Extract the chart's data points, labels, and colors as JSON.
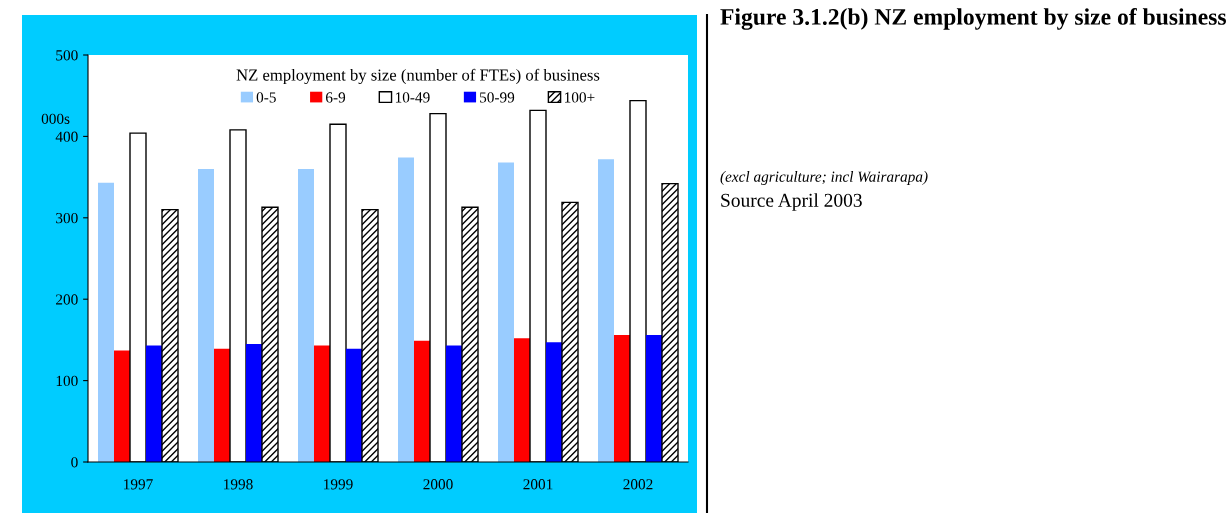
{
  "chart_data": {
    "type": "bar",
    "title": "Figure 3.1.2(b) NZ employment by size of business",
    "legend_title": "NZ employment by size (number of FTEs) of business",
    "ylabel": "000s",
    "annotations": [
      "(excl agriculture; incl Wairarapa)",
      "Source April 2003"
    ],
    "categories": [
      "1997",
      "1998",
      "1999",
      "2000",
      "2001",
      "2002"
    ],
    "series": [
      {
        "name": "0-5",
        "color": "#99ccff",
        "values": [
          343,
          360,
          360,
          374,
          368,
          372
        ]
      },
      {
        "name": "6-9",
        "color": "#ff0000",
        "values": [
          137,
          139,
          143,
          149,
          152,
          156
        ]
      },
      {
        "name": "10-49",
        "color": "#ffffff",
        "values": [
          404,
          408,
          415,
          428,
          432,
          444
        ]
      },
      {
        "name": "50-99",
        "color": "#0000ff",
        "values": [
          143,
          145,
          139,
          143,
          147,
          156
        ]
      },
      {
        "name": "100+",
        "color": "#000000",
        "values": [
          310,
          313,
          310,
          313,
          319,
          342
        ]
      }
    ],
    "ylim": [
      0,
      500
    ],
    "yticks": [
      0,
      100,
      200,
      300,
      400,
      500
    ],
    "grid": false,
    "legend": "top"
  }
}
